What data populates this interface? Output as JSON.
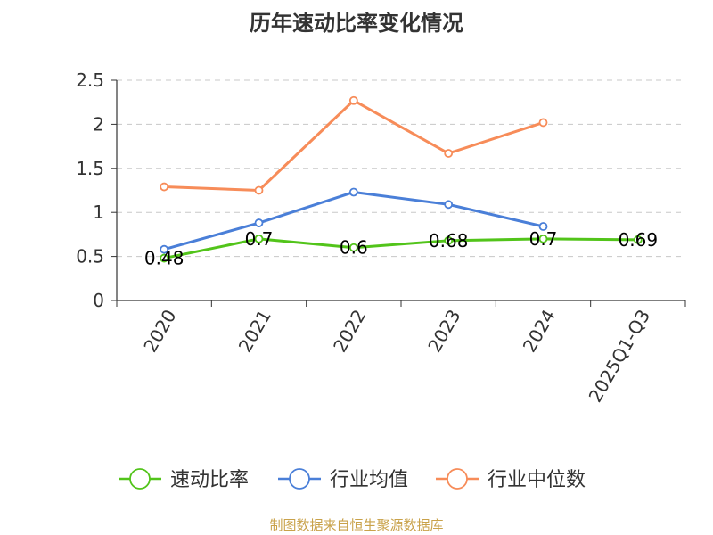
{
  "chart_data": {
    "type": "line",
    "title": "历年速动比率变化情况",
    "categories": [
      "2020",
      "2021",
      "2022",
      "2023",
      "2024",
      "2025Q1-Q3"
    ],
    "ylim": [
      0,
      2.5
    ],
    "yticks": [
      "0",
      "0.5",
      "1",
      "1.5",
      "2",
      "2.5"
    ],
    "grid": true,
    "legend_position": "bottom",
    "series": [
      {
        "name": "速动比率",
        "color": "#52c41a",
        "values": [
          0.48,
          0.7,
          0.6,
          0.68,
          0.7,
          0.69
        ],
        "labels": [
          "0.48",
          "0.7",
          "0.6",
          "0.68",
          "0.7",
          "0.69"
        ]
      },
      {
        "name": "行业均值",
        "color": "#4a7fd8",
        "values": [
          0.58,
          0.88,
          1.23,
          1.09,
          0.84,
          null
        ]
      },
      {
        "name": "行业中位数",
        "color": "#f78c59",
        "values": [
          1.29,
          1.25,
          2.27,
          1.67,
          2.02,
          null
        ]
      }
    ]
  },
  "footer": {
    "source": "制图数据来自恒生聚源数据库"
  }
}
